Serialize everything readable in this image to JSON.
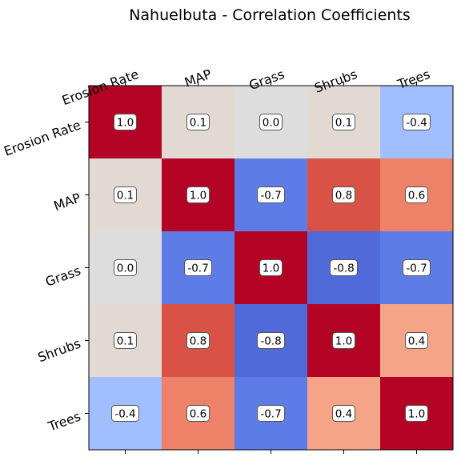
{
  "chart_data": {
    "type": "heatmap",
    "title": "Nahuelbuta - Correlation Coefficients",
    "x_labels": [
      "Erosion Rate",
      "MAP",
      "Grass",
      "Shrubs",
      "Trees"
    ],
    "y_labels": [
      "Erosion Rate",
      "MAP",
      "Grass",
      "Shrubs",
      "Trees"
    ],
    "values": [
      [
        1.0,
        0.1,
        0.0,
        0.1,
        -0.4
      ],
      [
        0.1,
        1.0,
        -0.7,
        0.8,
        0.6
      ],
      [
        0.0,
        -0.7,
        1.0,
        -0.8,
        -0.7
      ],
      [
        0.1,
        0.8,
        -0.8,
        1.0,
        0.4
      ],
      [
        -0.4,
        0.6,
        -0.7,
        0.4,
        1.0
      ]
    ],
    "value_labels": [
      [
        "1.0",
        "0.1",
        "0.0",
        "0.1",
        "-0.4"
      ],
      [
        "0.1",
        "1.0",
        "-0.7",
        "0.8",
        "0.6"
      ],
      [
        "0.0",
        "-0.7",
        "1.0",
        "-0.8",
        "-0.7"
      ],
      [
        "0.1",
        "0.8",
        "-0.8",
        "1.0",
        "0.4"
      ],
      [
        "-0.4",
        "0.6",
        "-0.7",
        "0.4",
        "1.0"
      ]
    ],
    "colormap": "coolwarm",
    "vmin": -1.0,
    "vmax": 1.0,
    "grid": false,
    "x_ticks_position": "top"
  }
}
